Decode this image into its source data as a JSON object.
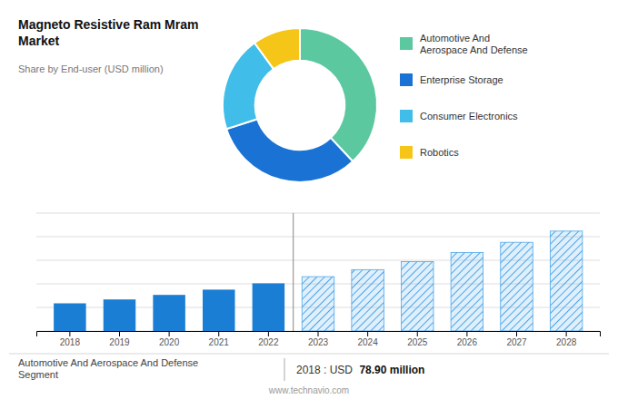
{
  "chart_data": [
    {
      "type": "donut",
      "title": "Magneto Resistive Ram Mram\nMarket",
      "subtitle": "Share by End-user (USD million)",
      "categories": [
        "Automotive And\nAerospace And Defense",
        "Enterprise Storage",
        "Consumer Electronics",
        "Robotics"
      ],
      "values": [
        38,
        32,
        20,
        10
      ],
      "colors": [
        "#5bc8a0",
        "#1a73d4",
        "#40bde8",
        "#f5c518"
      ]
    },
    {
      "type": "bar",
      "categories": [
        "2018",
        "2019",
        "2020",
        "2021",
        "2022",
        "2023",
        "2024",
        "2025",
        "2026",
        "2027",
        "2028"
      ],
      "series": [
        {
          "color": "#1a7fd4",
          "values": [
            78.9,
            90,
            103,
            118,
            136,
            null,
            null,
            null,
            null,
            null,
            null
          ]
        },
        {
          "color": "#4da6e8",
          "values": [
            null,
            null,
            null,
            null,
            null,
            155,
            175,
            198,
            224,
            253,
            285
          ]
        }
      ],
      "ylim": [
        0,
        336.3
      ],
      "yticks": [
        0,
        67.26,
        134.52,
        201.78,
        269.04,
        336.3
      ],
      "grid": true,
      "tick_labels": "x",
      "annotations": [
        "Automotive And Aerospace And Defense\nSegment",
        "2018 : USD ",
        "78.90 million",
        "www.technavio.com"
      ]
    }
  ]
}
